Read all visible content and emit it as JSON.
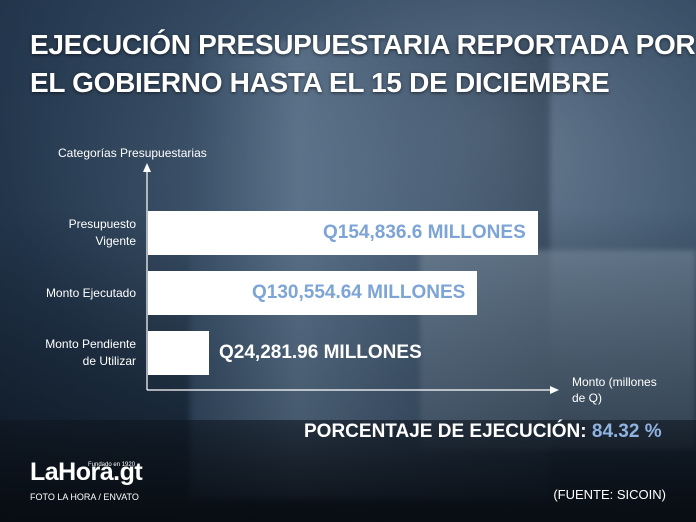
{
  "title": {
    "line1": "EJECUCIÓN PRESUPUESTARIA REPORTADA POR",
    "line2": "EL GOBIERNO HASTA EL 15 DE DICIEMBRE"
  },
  "chart_data": {
    "type": "bar",
    "orientation": "horizontal",
    "ylabel": "Categorías Presupuestarias",
    "xlabel": "Monto (millones de Q)",
    "categories": [
      "Presupuesto Vigente",
      "Monto Ejecutado",
      "Monto Pendiente de Utilizar"
    ],
    "values": [
      154836.6,
      130554.64,
      24281.96
    ],
    "data_labels": [
      "Q154,836.6 MILLONES",
      "Q130,554.64 MILLONES",
      "Q24,281.96 MILLONES"
    ],
    "xlim": [
      0,
      154836.6
    ],
    "grid": false,
    "bar_color": "#ffffff",
    "label_color": "#7da4d6",
    "outside_label_color": "#ffffff"
  },
  "category_lines": [
    [
      "Presupuesto",
      "Vigente"
    ],
    [
      "Monto Ejecutado"
    ],
    [
      "Monto Pendiente",
      "de Utilizar"
    ]
  ],
  "xlabel_lines": [
    "Monto (millones",
    "de Q)"
  ],
  "execution": {
    "label": "PORCENTAJE DE EJECUCIÓN:",
    "value": "84.32 %",
    "accent": "#8fb2e0"
  },
  "logo": {
    "text": "LaHora.gt",
    "small": "Fundado en 1920"
  },
  "credit": "FOTO LA HORA / ENVATO",
  "source": "(FUENTE: SICOIN)"
}
